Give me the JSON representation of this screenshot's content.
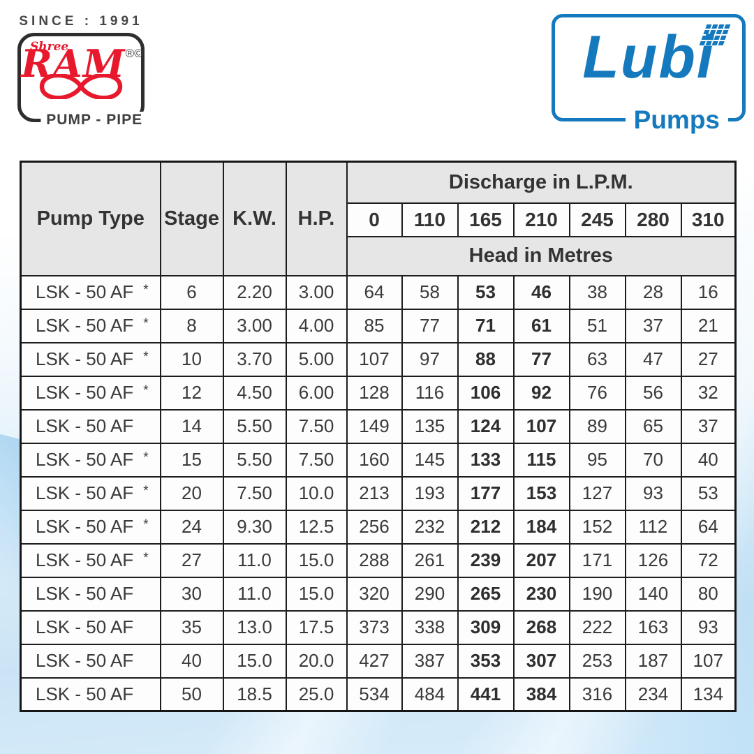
{
  "branding": {
    "since_text": "SINCE : 1991",
    "shree": "Shree",
    "ram": "RAM",
    "ram_marks": "®©",
    "pump_pipe": "PUMP - PIPE",
    "lubi": "Lubi",
    "pumps": "Pumps",
    "lubi_blue": "#1579bd",
    "ram_red": "#e8192c"
  },
  "table": {
    "headers": {
      "pump_type": "Pump Type",
      "stage": "Stage",
      "kw": "K.W.",
      "hp": "H.P.",
      "discharge": "Discharge in L.P.M.",
      "head": "Head in Metres",
      "discharge_values": [
        "0",
        "110",
        "165",
        "210",
        "245",
        "280",
        "310"
      ]
    },
    "bold_column_indices": [
      2,
      3
    ],
    "rows": [
      {
        "pump_type": "LSK - 50 AF",
        "star": true,
        "stage": "6",
        "kw": "2.20",
        "hp": "3.00",
        "heads": [
          "64",
          "58",
          "53",
          "46",
          "38",
          "28",
          "16"
        ]
      },
      {
        "pump_type": "LSK - 50 AF",
        "star": true,
        "stage": "8",
        "kw": "3.00",
        "hp": "4.00",
        "heads": [
          "85",
          "77",
          "71",
          "61",
          "51",
          "37",
          "21"
        ]
      },
      {
        "pump_type": "LSK - 50 AF",
        "star": true,
        "stage": "10",
        "kw": "3.70",
        "hp": "5.00",
        "heads": [
          "107",
          "97",
          "88",
          "77",
          "63",
          "47",
          "27"
        ]
      },
      {
        "pump_type": "LSK - 50 AF",
        "star": true,
        "stage": "12",
        "kw": "4.50",
        "hp": "6.00",
        "heads": [
          "128",
          "116",
          "106",
          "92",
          "76",
          "56",
          "32"
        ]
      },
      {
        "pump_type": "LSK - 50 AF",
        "star": false,
        "stage": "14",
        "kw": "5.50",
        "hp": "7.50",
        "heads": [
          "149",
          "135",
          "124",
          "107",
          "89",
          "65",
          "37"
        ]
      },
      {
        "pump_type": "LSK - 50 AF",
        "star": true,
        "stage": "15",
        "kw": "5.50",
        "hp": "7.50",
        "heads": [
          "160",
          "145",
          "133",
          "115",
          "95",
          "70",
          "40"
        ]
      },
      {
        "pump_type": "LSK - 50 AF",
        "star": true,
        "stage": "20",
        "kw": "7.50",
        "hp": "10.0",
        "heads": [
          "213",
          "193",
          "177",
          "153",
          "127",
          "93",
          "53"
        ]
      },
      {
        "pump_type": "LSK - 50 AF",
        "star": true,
        "stage": "24",
        "kw": "9.30",
        "hp": "12.5",
        "heads": [
          "256",
          "232",
          "212",
          "184",
          "152",
          "112",
          "64"
        ]
      },
      {
        "pump_type": "LSK - 50 AF",
        "star": true,
        "stage": "27",
        "kw": "11.0",
        "hp": "15.0",
        "heads": [
          "288",
          "261",
          "239",
          "207",
          "171",
          "126",
          "72"
        ]
      },
      {
        "pump_type": "LSK - 50 AF",
        "star": false,
        "stage": "30",
        "kw": "11.0",
        "hp": "15.0",
        "heads": [
          "320",
          "290",
          "265",
          "230",
          "190",
          "140",
          "80"
        ]
      },
      {
        "pump_type": "LSK - 50 AF",
        "star": false,
        "stage": "35",
        "kw": "13.0",
        "hp": "17.5",
        "heads": [
          "373",
          "338",
          "309",
          "268",
          "222",
          "163",
          "93"
        ]
      },
      {
        "pump_type": "LSK - 50 AF",
        "star": false,
        "stage": "40",
        "kw": "15.0",
        "hp": "20.0",
        "heads": [
          "427",
          "387",
          "353",
          "307",
          "253",
          "187",
          "107"
        ]
      },
      {
        "pump_type": "LSK - 50 AF",
        "star": false,
        "stage": "50",
        "kw": "18.5",
        "hp": "25.0",
        "heads": [
          "534",
          "484",
          "441",
          "384",
          "316",
          "234",
          "134"
        ]
      }
    ]
  }
}
